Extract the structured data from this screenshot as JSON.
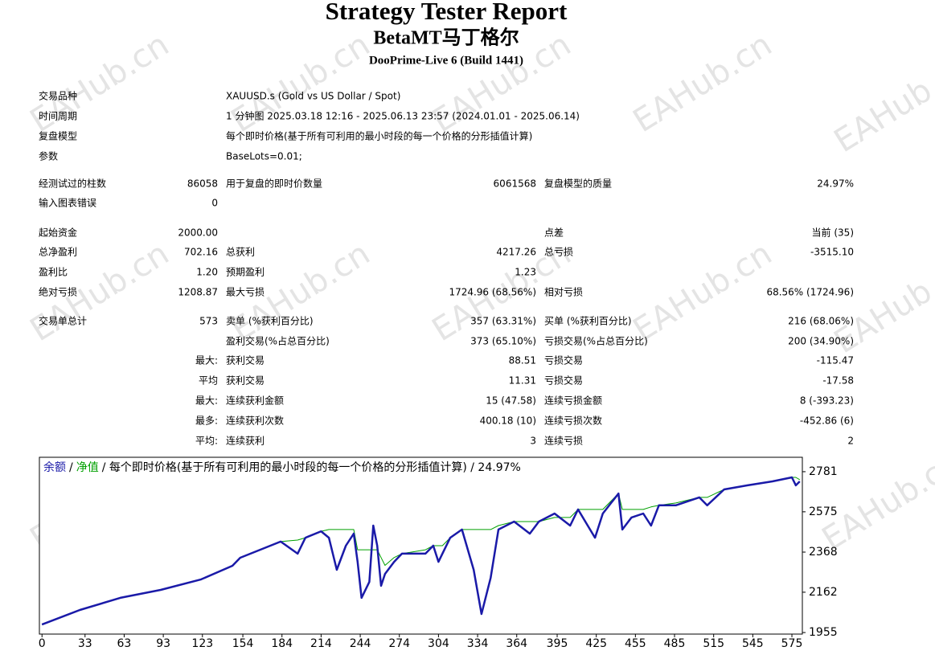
{
  "watermark": "EAHub.cn",
  "header": {
    "title": "Strategy Tester Report",
    "subtitle": "BetaMT马丁格尔",
    "server": "DooPrime-Live 6 (Build 1441)"
  },
  "info": [
    [
      "交易品种",
      "XAUUSD.s (Gold vs US Dollar / Spot)"
    ],
    [
      "时间周期",
      "1 分钟图 2025.03.18 12:16 - 2025.06.13 23:57 (2024.01.01 - 2025.06.14)"
    ],
    [
      "复盘模型",
      "每个即时价格(基于所有可利用的最小时段的每一个价格的分形插值计算)"
    ],
    [
      "参数",
      "BaseLots=0.01;"
    ]
  ],
  "stats": [
    [
      [
        "经测试过的柱数",
        "86058",
        "用于复盘的即时价数量",
        "6061568",
        "复盘模型的质量",
        "24.97%"
      ],
      [
        "输入图表错误",
        "0",
        null,
        null,
        null,
        null
      ]
    ],
    [
      [
        "起始资金",
        "2000.00",
        null,
        null,
        "点差",
        "当前 (35)"
      ],
      [
        "总净盈利",
        "702.16",
        "总获利",
        "4217.26",
        "总亏损",
        "-3515.10"
      ],
      [
        "盈利比",
        "1.20",
        "预期盈利",
        "1.23",
        null,
        null
      ],
      [
        "绝对亏损",
        "1208.87",
        "最大亏损",
        "1724.96 (68.56%)",
        "相对亏损",
        "68.56% (1724.96)"
      ]
    ],
    [
      [
        "交易单总计",
        "573",
        "卖单 (%获利百分比)",
        "357 (63.31%)",
        "买单 (%获利百分比)",
        "216 (68.06%)"
      ],
      [
        null,
        null,
        "盈利交易(%占总百分比)",
        "373 (65.10%)",
        "亏损交易(%占总百分比)",
        "200 (34.90%)"
      ],
      [
        "最大:",
        null,
        "获利交易",
        "88.51",
        "亏损交易",
        "-115.47"
      ],
      [
        "平均",
        null,
        "获利交易",
        "11.31",
        "亏损交易",
        "-17.58"
      ],
      [
        "最大:",
        null,
        "连续获利金额",
        "15 (47.58)",
        "连续亏损金额",
        "8 (-393.23)"
      ],
      [
        "最多:",
        null,
        "连续获利次数",
        "400.18 (10)",
        "连续亏损次数",
        "-452.86 (6)"
      ],
      [
        "平均:",
        null,
        "连续获利",
        "3",
        "连续亏损",
        "2"
      ]
    ]
  ],
  "chart_data": {
    "type": "line",
    "legend_separator": "/",
    "legend_note": "/ 每个即时价格(基于所有可利用的最小时段的每一个价格的分形插值计算) / 24.97%",
    "x": [
      0,
      29,
      60,
      91,
      122,
      146,
      152,
      183,
      196,
      202,
      214,
      220,
      226,
      233,
      239,
      242,
      245,
      251,
      254,
      257,
      260,
      263,
      270,
      276,
      294,
      300,
      304,
      307,
      313,
      322,
      331,
      337,
      344,
      350,
      362,
      374,
      381,
      393,
      405,
      411,
      424,
      430,
      442,
      445,
      452,
      461,
      467,
      473,
      486,
      504,
      510,
      523,
      541,
      560,
      575,
      578,
      581
    ],
    "series": [
      {
        "name": "净值",
        "color": "#00a000",
        "width": 1,
        "values": [
          1996,
          2071,
          2133,
          2174,
          2228,
          2298,
          2339,
          2422,
          2430,
          2442,
          2475,
          2484,
          2484,
          2484,
          2484,
          2380,
          2380,
          2380,
          2380,
          2380,
          2340,
          2300,
          2340,
          2360,
          2380,
          2401,
          2401,
          2401,
          2442,
          2484,
          2484,
          2484,
          2484,
          2504,
          2525,
          2525,
          2525,
          2546,
          2546,
          2587,
          2587,
          2587,
          2669,
          2587,
          2587,
          2587,
          2600,
          2608,
          2620,
          2649,
          2649,
          2690,
          2711,
          2731,
          2752,
          2752,
          2740
        ]
      },
      {
        "name": "余额",
        "color": "#1a1aa8",
        "width": 2.5,
        "values": [
          1996,
          2071,
          2133,
          2174,
          2228,
          2298,
          2339,
          2422,
          2360,
          2442,
          2475,
          2442,
          2277,
          2401,
          2463,
          2318,
          2133,
          2215,
          2504,
          2401,
          2195,
          2256,
          2318,
          2360,
          2360,
          2401,
          2318,
          2360,
          2442,
          2484,
          2277,
          2050,
          2236,
          2484,
          2525,
          2463,
          2525,
          2566,
          2504,
          2587,
          2442,
          2566,
          2669,
          2484,
          2546,
          2566,
          2504,
          2608,
          2608,
          2649,
          2608,
          2690,
          2711,
          2731,
          2752,
          2711,
          2731
        ]
      }
    ],
    "legend_order": [
      1,
      0
    ],
    "xlim": [
      -2,
      583
    ],
    "xticks": [
      0,
      33,
      63,
      93,
      123,
      154,
      184,
      214,
      244,
      274,
      304,
      334,
      364,
      395,
      425,
      455,
      485,
      515,
      545,
      575
    ],
    "ylim": [
      1947,
      2855
    ],
    "yticks": [
      1955,
      2162,
      2368,
      2575,
      2781
    ]
  }
}
